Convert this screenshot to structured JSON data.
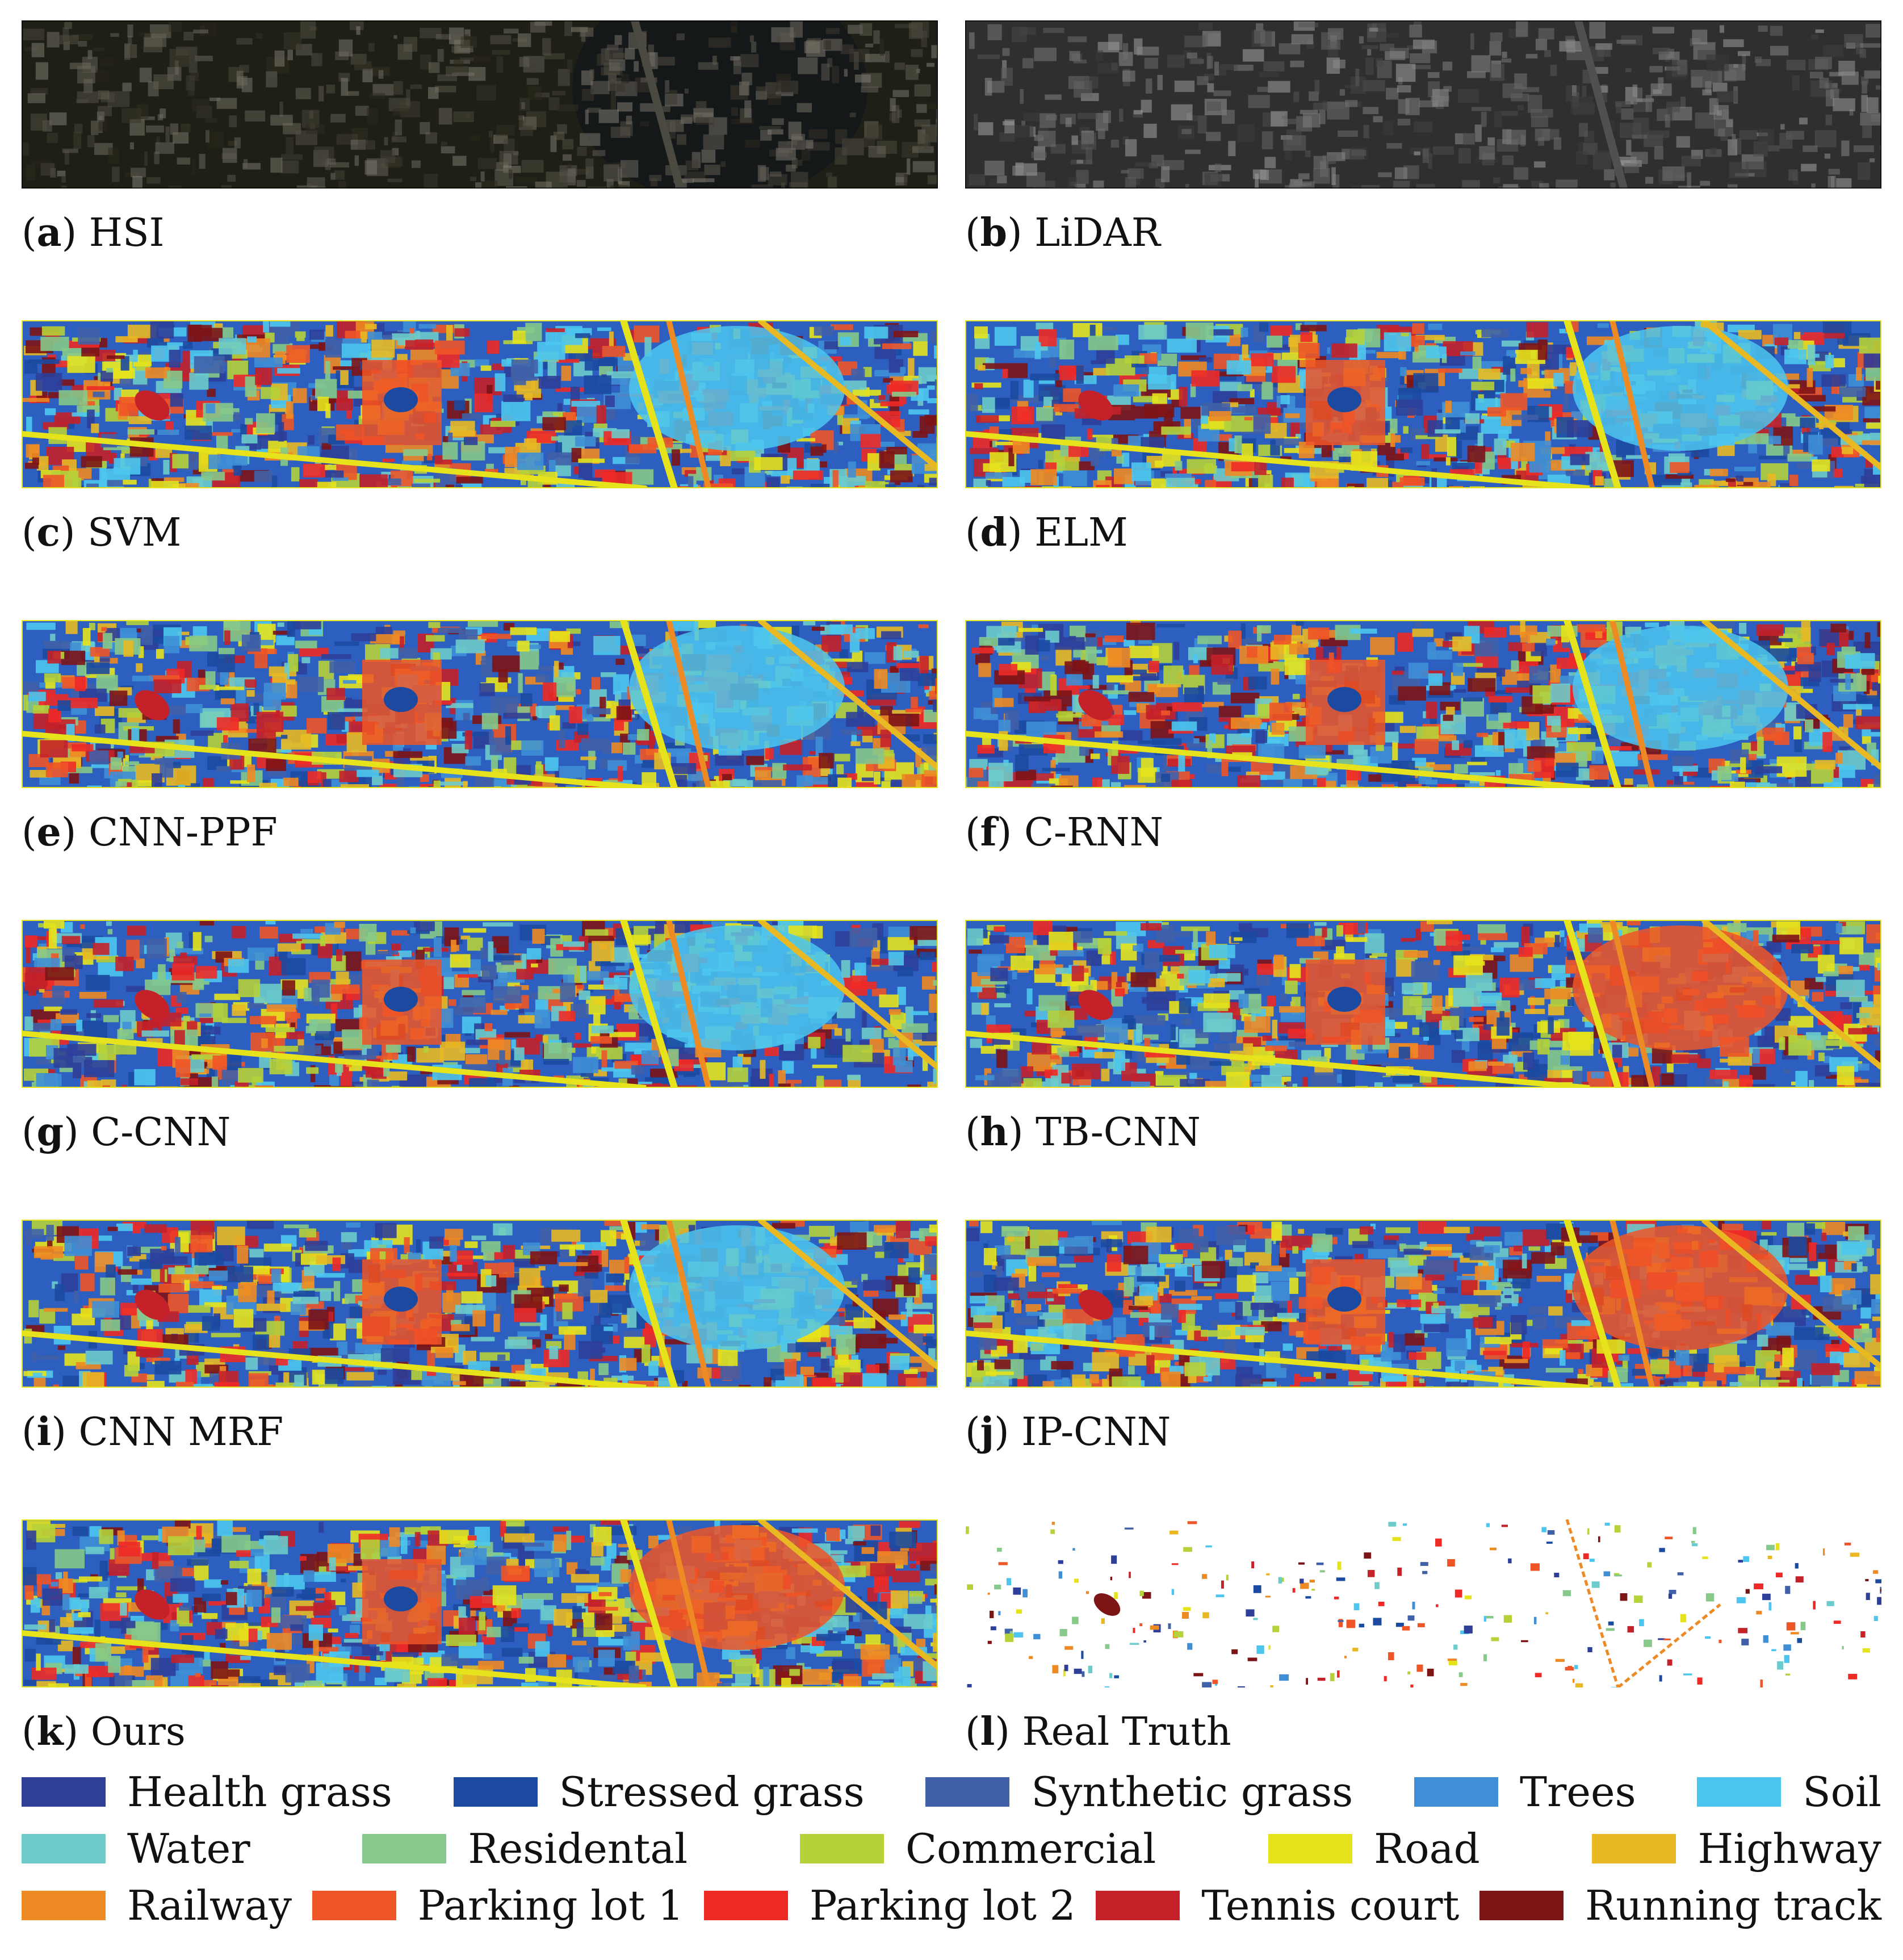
{
  "panels": [
    {
      "letter": "a",
      "name": "HSI",
      "kind": "hsi"
    },
    {
      "letter": "b",
      "name": "LiDAR",
      "kind": "lidar"
    },
    {
      "letter": "c",
      "name": "SVM",
      "kind": "map"
    },
    {
      "letter": "d",
      "name": "ELM",
      "kind": "map"
    },
    {
      "letter": "e",
      "name": "CNN-PPF",
      "kind": "map"
    },
    {
      "letter": "f",
      "name": "C-RNN",
      "kind": "map"
    },
    {
      "letter": "g",
      "name": "C-CNN",
      "kind": "map"
    },
    {
      "letter": "h",
      "name": "TB-CNN",
      "kind": "map"
    },
    {
      "letter": "i",
      "name": "CNN MRF",
      "kind": "map"
    },
    {
      "letter": "j",
      "name": "IP-CNN",
      "kind": "map"
    },
    {
      "letter": "k",
      "name": "Ours",
      "kind": "map"
    },
    {
      "letter": "l",
      "name": "Real Truth",
      "kind": "truth"
    }
  ],
  "legend": [
    [
      {
        "label": "Health grass",
        "color": "#2d3f99"
      },
      {
        "label": "Stressed grass",
        "color": "#1b4aa0"
      },
      {
        "label": "Synthetic grass",
        "color": "#4060a8"
      },
      {
        "label": "Trees",
        "color": "#3f8fd6"
      },
      {
        "label": "Soil",
        "color": "#4cc6ee"
      }
    ],
    [
      {
        "label": "Water",
        "color": "#6ccbcb"
      },
      {
        "label": "Residental",
        "color": "#86c98a"
      },
      {
        "label": "Commercial",
        "color": "#b5d23a"
      },
      {
        "label": "Road",
        "color": "#e6e31c"
      },
      {
        "label": "Highway",
        "color": "#e8b923"
      }
    ],
    [
      {
        "label": "Railway",
        "color": "#ee8a24"
      },
      {
        "label": "Parking lot 1",
        "color": "#ee5527"
      },
      {
        "label": "Parking lot 2",
        "color": "#ee2a27"
      },
      {
        "label": "Tennis court",
        "color": "#c42129"
      },
      {
        "label": "Running track",
        "color": "#7d1416"
      }
    ]
  ]
}
